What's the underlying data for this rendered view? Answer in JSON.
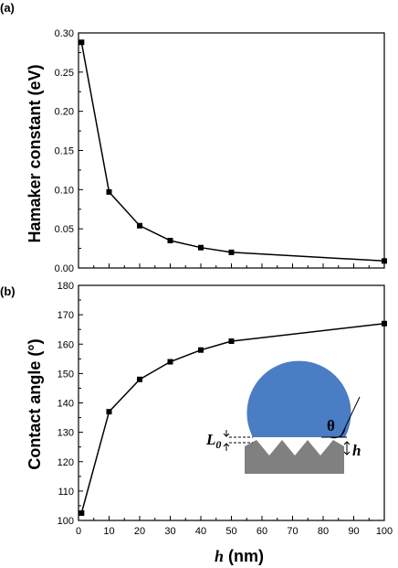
{
  "chart_data": [
    {
      "panel_label": "(a)",
      "type": "line",
      "ylabel": "Hamaker constant (eV)",
      "xlabel": "",
      "xlim": [
        0,
        100
      ],
      "ylim": [
        0.0,
        0.3
      ],
      "x_ticks": [
        0,
        10,
        20,
        30,
        40,
        50,
        60,
        70,
        80,
        90,
        100
      ],
      "y_ticks": [
        "0.00",
        "0.05",
        "0.10",
        "0.15",
        "0.20",
        "0.25",
        "0.30"
      ],
      "show_x_tick_labels": false,
      "grid": false,
      "series": [
        {
          "x": [
            1,
            10,
            20,
            30,
            40,
            50,
            100
          ],
          "y": [
            0.288,
            0.097,
            0.054,
            0.035,
            0.026,
            0.02,
            0.009
          ],
          "marker": "square",
          "color": "#000000"
        }
      ]
    },
    {
      "panel_label": "(b)",
      "type": "line",
      "ylabel": "Contact angle (°)",
      "xlabel_var": "h",
      "xlabel_unit": " (nm)",
      "xlim": [
        0,
        100
      ],
      "ylim": [
        100,
        180
      ],
      "x_ticks": [
        "0",
        "10",
        "20",
        "30",
        "40",
        "50",
        "60",
        "70",
        "80",
        "90",
        "100"
      ],
      "y_ticks": [
        "100",
        "110",
        "120",
        "130",
        "140",
        "150",
        "160",
        "170",
        "180"
      ],
      "show_x_tick_labels": true,
      "grid": false,
      "series": [
        {
          "x": [
            1,
            10,
            20,
            30,
            40,
            50,
            100
          ],
          "y": [
            102.5,
            137,
            148,
            154,
            158,
            161,
            167
          ],
          "marker": "square",
          "color": "#000000"
        }
      ]
    }
  ],
  "inset": {
    "theta": "θ",
    "l0_main": "L",
    "l0_sub": "0",
    "h": "h",
    "droplet_color": "#4a7dc4",
    "substrate_color": "#808080"
  }
}
